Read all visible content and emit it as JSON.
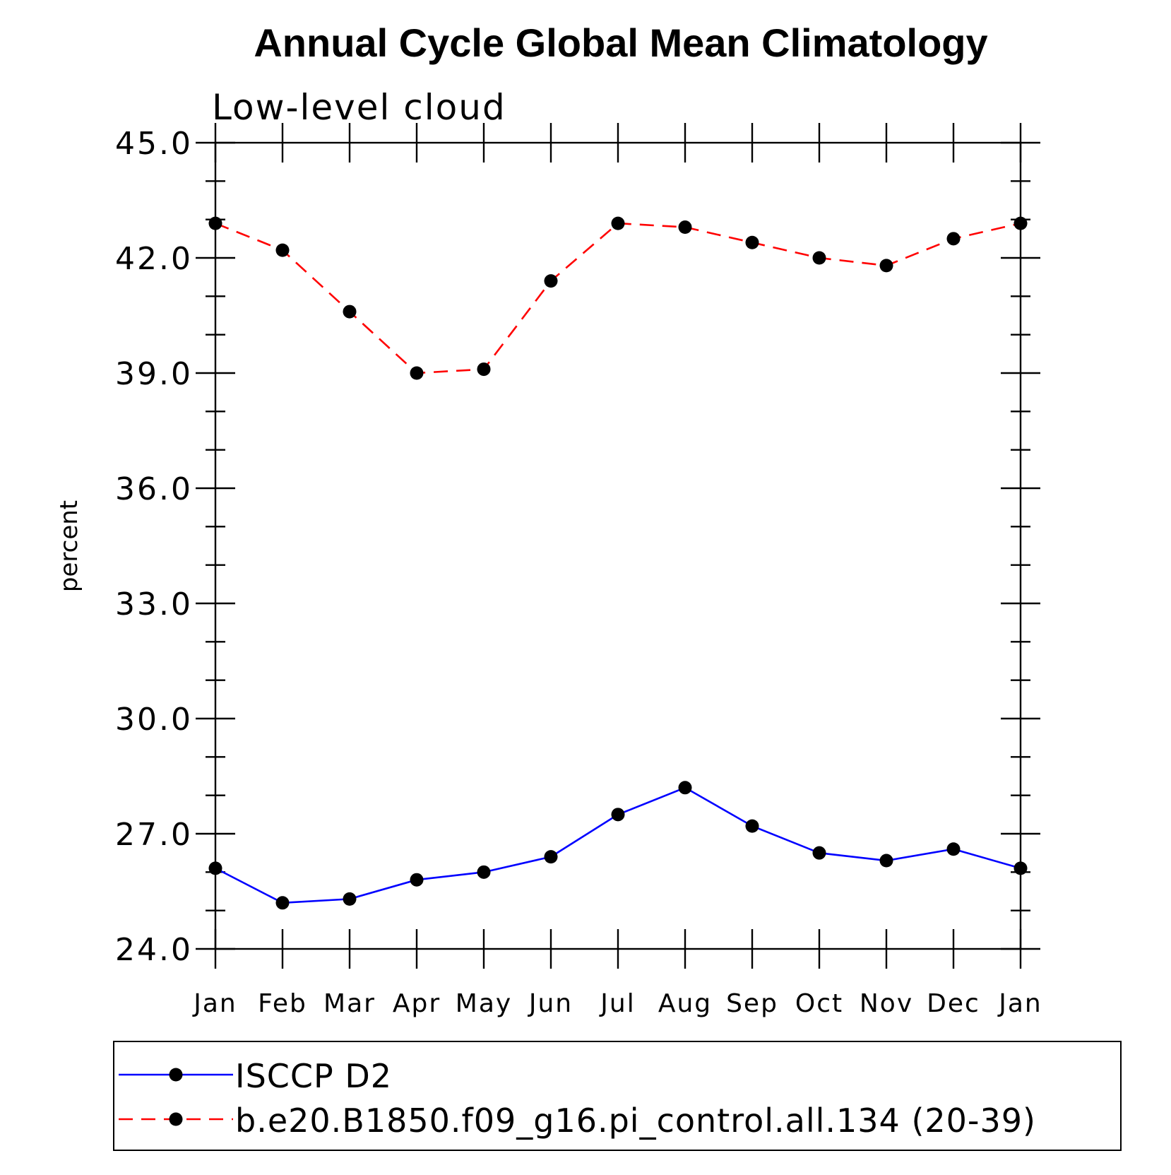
{
  "chart_data": {
    "type": "line",
    "title": "Annual Cycle Global Mean Climatology",
    "subtitle": "Low-level cloud",
    "xlabel": "",
    "ylabel": "percent",
    "categories": [
      "Jan",
      "Feb",
      "Mar",
      "Apr",
      "May",
      "Jun",
      "Jul",
      "Aug",
      "Sep",
      "Oct",
      "Nov",
      "Dec",
      "Jan"
    ],
    "ylim": [
      24.0,
      45.0
    ],
    "yticks": [
      "24.0",
      "27.0",
      "30.0",
      "33.0",
      "36.0",
      "39.0",
      "42.0",
      "45.0"
    ],
    "ytick_values": [
      24,
      27,
      30,
      33,
      36,
      39,
      42,
      45
    ],
    "grid": false,
    "legend_position": "bottom",
    "series": [
      {
        "name": "ISCCP D2",
        "color": "#0000ff",
        "line_style": "solid",
        "marker": "filled-circle",
        "values": [
          26.1,
          25.2,
          25.3,
          25.8,
          26.0,
          26.4,
          27.5,
          28.2,
          27.2,
          26.5,
          26.3,
          26.6,
          26.1
        ]
      },
      {
        "name": "b.e20.B1850.f09_g16.pi_control.all.134 (20-39)",
        "color": "#ff0000",
        "line_style": "dashed",
        "marker": "filled-circle",
        "values": [
          42.9,
          42.2,
          40.6,
          39.0,
          39.1,
          41.4,
          42.9,
          42.8,
          42.4,
          42.0,
          41.8,
          42.5,
          42.9
        ]
      }
    ]
  }
}
